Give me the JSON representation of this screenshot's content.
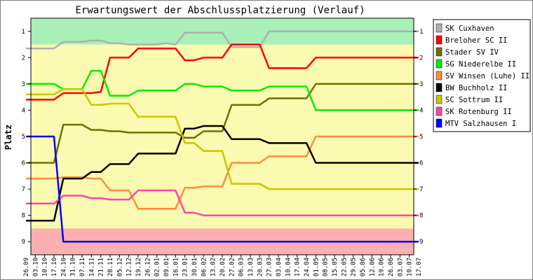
{
  "chart_data": {
    "type": "line",
    "title": "Erwartungswert der Abschlussplatzierung (Verlauf)",
    "ylabel": "Platz",
    "xlabel": "",
    "ylim": [
      1,
      9
    ],
    "y_inverted": true,
    "y_ticks": [
      1,
      2,
      3,
      4,
      5,
      6,
      7,
      8,
      9
    ],
    "legend_position": "right",
    "grid": false,
    "categories": [
      "26.09",
      "03.10",
      "10.10",
      "17.10",
      "24.10",
      "31.10",
      "07.11",
      "14.11",
      "21.11",
      "28.11",
      "05.12",
      "12.12",
      "19.12",
      "26.12",
      "02.01",
      "09.01",
      "16.01",
      "23.01",
      "30.01",
      "06.02",
      "13.02",
      "20.02",
      "27.02",
      "06.03",
      "13.03",
      "20.03",
      "27.03",
      "03.04",
      "10.04",
      "17.04",
      "24.04",
      "01.05",
      "08.05",
      "15.05",
      "22.05",
      "29.05",
      "05.06",
      "12.06",
      "19.06",
      "26.06",
      "03.07",
      "10.07",
      "17.07"
    ],
    "background_bands": [
      {
        "from": 0.5,
        "to": 1.5,
        "color": "#a8f0b8"
      },
      {
        "from": 1.5,
        "to": 8.5,
        "color": "#fafab0"
      },
      {
        "from": 8.5,
        "to": 9.5,
        "color": "#fab0b0"
      }
    ],
    "series": [
      {
        "name": "SK Cuxhaven",
        "color": "#b0b0b0",
        "values": [
          1.65,
          1.65,
          1.65,
          1.65,
          1.4,
          1.4,
          1.4,
          1.35,
          1.35,
          1.45,
          1.45,
          1.5,
          1.5,
          1.5,
          1.5,
          1.45,
          1.5,
          1.05,
          1.05,
          1.05,
          1.05,
          1.05,
          1.6,
          1.6,
          1.6,
          1.6,
          1.0,
          1.0,
          1.0,
          1.0,
          1.0,
          1.0,
          1.0,
          1.0,
          1.0,
          1.0,
          1.0,
          1.0,
          1.0,
          1.0,
          1.0,
          1.0,
          1.0
        ]
      },
      {
        "name": "Breloher SC II",
        "color": "#ff0000",
        "values": [
          3.6,
          3.6,
          3.6,
          3.6,
          3.35,
          3.35,
          3.35,
          3.35,
          3.3,
          2.0,
          2.0,
          2.0,
          1.65,
          1.65,
          1.65,
          1.65,
          1.65,
          2.1,
          2.1,
          2.0,
          2.0,
          2.0,
          1.5,
          1.5,
          1.5,
          1.5,
          2.4,
          2.4,
          2.4,
          2.4,
          2.4,
          2.0,
          2.0,
          2.0,
          2.0,
          2.0,
          2.0,
          2.0,
          2.0,
          2.0,
          2.0,
          2.0,
          2.0
        ]
      },
      {
        "name": "Stader SV IV",
        "color": "#707000",
        "values": [
          6.0,
          6.0,
          6.0,
          6.0,
          4.55,
          4.55,
          4.55,
          4.75,
          4.75,
          4.8,
          4.8,
          4.85,
          4.85,
          4.85,
          4.85,
          4.85,
          4.85,
          5.05,
          5.05,
          4.8,
          4.8,
          4.8,
          3.8,
          3.8,
          3.8,
          3.8,
          3.55,
          3.55,
          3.55,
          3.55,
          3.55,
          3.0,
          3.0,
          3.0,
          3.0,
          3.0,
          3.0,
          3.0,
          3.0,
          3.0,
          3.0,
          3.0,
          3.0
        ]
      },
      {
        "name": "SG Niederelbe II",
        "color": "#00ee00",
        "values": [
          3.0,
          3.0,
          3.0,
          3.0,
          3.2,
          3.2,
          3.2,
          2.5,
          2.5,
          3.45,
          3.45,
          3.45,
          3.25,
          3.25,
          3.25,
          3.25,
          3.25,
          3.0,
          3.0,
          3.1,
          3.1,
          3.1,
          3.25,
          3.25,
          3.25,
          3.25,
          3.1,
          3.1,
          3.1,
          3.1,
          3.1,
          4.0,
          4.0,
          4.0,
          4.0,
          4.0,
          4.0,
          4.0,
          4.0,
          4.0,
          4.0,
          4.0,
          4.0
        ]
      },
      {
        "name": "SV Winsen (Luhe) II",
        "color": "#ff8c3c",
        "values": [
          6.6,
          6.6,
          6.6,
          6.6,
          6.55,
          6.55,
          6.55,
          6.6,
          6.6,
          7.05,
          7.05,
          7.05,
          7.75,
          7.75,
          7.75,
          7.75,
          7.75,
          6.95,
          6.95,
          6.9,
          6.9,
          6.9,
          6.0,
          6.0,
          6.0,
          6.0,
          5.75,
          5.75,
          5.75,
          5.75,
          5.75,
          5.0,
          5.0,
          5.0,
          5.0,
          5.0,
          5.0,
          5.0,
          5.0,
          5.0,
          5.0,
          5.0,
          5.0
        ]
      },
      {
        "name": "BW Buchholz II",
        "color": "#000000",
        "values": [
          8.2,
          8.2,
          8.2,
          8.2,
          6.6,
          6.6,
          6.6,
          6.35,
          6.35,
          6.05,
          6.05,
          6.05,
          5.65,
          5.65,
          5.65,
          5.65,
          5.65,
          4.7,
          4.7,
          4.6,
          4.6,
          4.6,
          5.1,
          5.1,
          5.1,
          5.1,
          5.25,
          5.25,
          5.25,
          5.25,
          5.25,
          6.0,
          6.0,
          6.0,
          6.0,
          6.0,
          6.0,
          6.0,
          6.0,
          6.0,
          6.0,
          6.0,
          6.0
        ]
      },
      {
        "name": "SC Sottrum II",
        "color": "#c8c800",
        "values": [
          3.4,
          3.4,
          3.4,
          3.4,
          3.2,
          3.2,
          3.2,
          3.8,
          3.8,
          3.75,
          3.75,
          3.75,
          4.25,
          4.25,
          4.25,
          4.25,
          4.25,
          5.25,
          5.25,
          5.55,
          5.55,
          5.55,
          6.8,
          6.8,
          6.8,
          6.8,
          7.0,
          7.0,
          7.0,
          7.0,
          7.0,
          7.0,
          7.0,
          7.0,
          7.0,
          7.0,
          7.0,
          7.0,
          7.0,
          7.0,
          7.0,
          7.0,
          7.0
        ]
      },
      {
        "name": "SK Rotenburg II",
        "color": "#ff44aa",
        "values": [
          7.55,
          7.55,
          7.55,
          7.55,
          7.25,
          7.25,
          7.25,
          7.35,
          7.35,
          7.4,
          7.4,
          7.4,
          7.05,
          7.05,
          7.05,
          7.05,
          7.05,
          7.9,
          7.9,
          8.0,
          8.0,
          8.0,
          8.0,
          8.0,
          8.0,
          8.0,
          8.0,
          8.0,
          8.0,
          8.0,
          8.0,
          8.0,
          8.0,
          8.0,
          8.0,
          8.0,
          8.0,
          8.0,
          8.0,
          8.0,
          8.0,
          8.0,
          8.0
        ]
      },
      {
        "name": "MTV Salzhausen I",
        "color": "#0000ff",
        "values": [
          5.0,
          5.0,
          5.0,
          5.0,
          9.0,
          9.0,
          9.0,
          9.0,
          9.0,
          9.0,
          9.0,
          9.0,
          9.0,
          9.0,
          9.0,
          9.0,
          9.0,
          9.0,
          9.0,
          9.0,
          9.0,
          9.0,
          9.0,
          9.0,
          9.0,
          9.0,
          9.0,
          9.0,
          9.0,
          9.0,
          9.0,
          9.0,
          9.0,
          9.0,
          9.0,
          9.0,
          9.0,
          9.0,
          9.0,
          9.0,
          9.0,
          9.0,
          9.0
        ]
      }
    ]
  }
}
